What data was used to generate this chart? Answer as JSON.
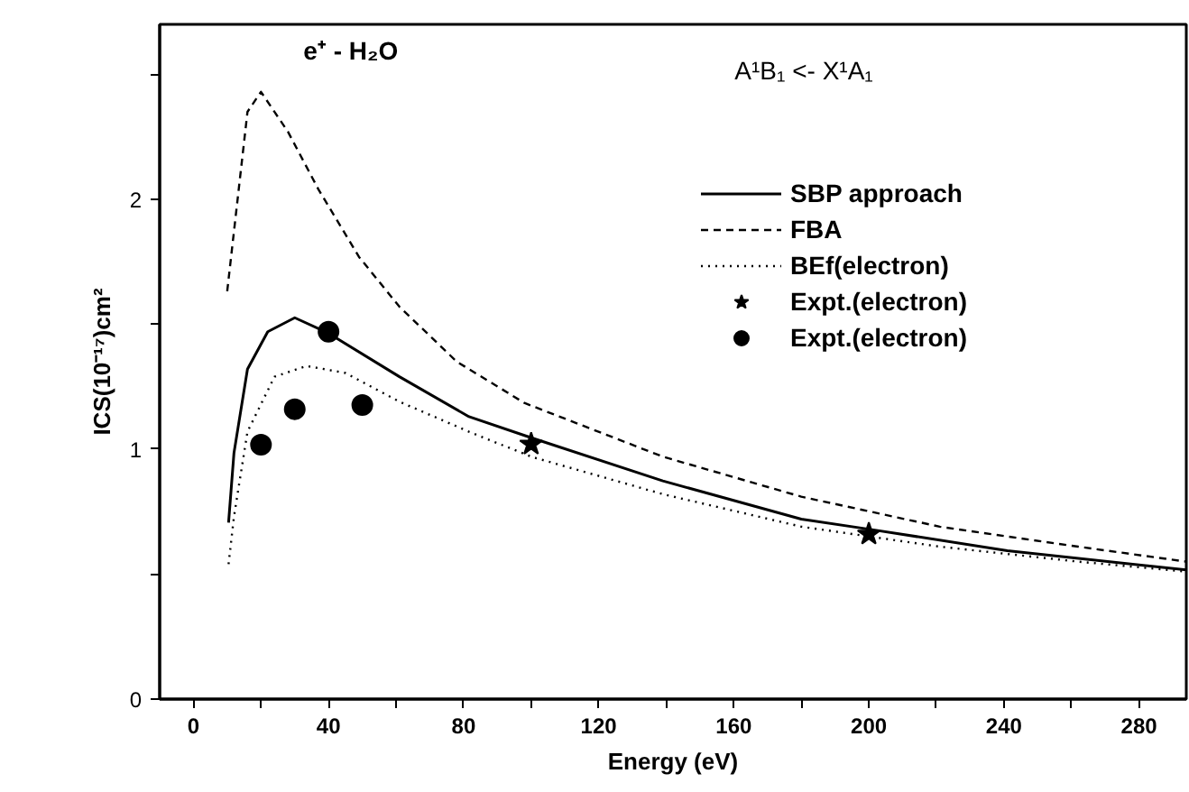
{
  "chart_data": {
    "type": "line",
    "xlabel": "Energy (eV)",
    "ylabel": "ICS(10⁻¹⁷)cm²",
    "annotations": [
      "e⁺ - H₂O",
      "A¹B₁ <- X¹A₁"
    ],
    "xlim": [
      -10,
      294
    ],
    "ylim": [
      0,
      2.7
    ],
    "xticks": [
      0,
      {
        "value": 20,
        "label": null
      },
      40,
      {
        "value": 60,
        "label": null
      },
      80,
      {
        "value": 100,
        "label": null
      },
      120,
      {
        "value": 140,
        "label": null
      },
      160,
      {
        "value": 180,
        "label": null
      },
      200,
      {
        "value": 220,
        "label": null
      },
      240,
      {
        "value": 260,
        "label": null
      },
      280
    ],
    "yticks": [
      0,
      {
        "value": 0.5,
        "label": null
      },
      1,
      {
        "value": 1.5,
        "label": null
      },
      2,
      {
        "value": 2.5,
        "label": null
      }
    ],
    "grid": false,
    "legend": "top right",
    "series": [
      {
        "name": "SBP approach",
        "color": "#000000",
        "line_style": "solid",
        "x": [
          10.4,
          12,
          16,
          22,
          30,
          40,
          61,
          81.6,
          100,
          139,
          180,
          200,
          241,
          294
        ],
        "values": [
          0.706,
          0.985,
          1.32,
          1.47,
          1.526,
          1.464,
          1.29,
          1.13,
          1.046,
          0.873,
          0.72,
          0.68,
          0.594,
          0.517
        ]
      },
      {
        "name": "FBA",
        "color": "#000000",
        "line_style": "dashed",
        "x": [
          10,
          16,
          20,
          28,
          37,
          49,
          61,
          78,
          98,
          139,
          180,
          221,
          262,
          294
        ],
        "values": [
          1.632,
          2.35,
          2.43,
          2.27,
          2.04,
          1.77,
          1.57,
          1.35,
          1.185,
          0.97,
          0.81,
          0.69,
          0.61,
          0.55
        ]
      },
      {
        "name": "BEf(electron)",
        "color": "#000000",
        "line_style": "dotted",
        "x": [
          10.4,
          12,
          16,
          24,
          33.5,
          45,
          61,
          81.6,
          100,
          139,
          180,
          221,
          262,
          294
        ],
        "values": [
          0.54,
          0.73,
          1.07,
          1.29,
          1.333,
          1.305,
          1.19,
          1.07,
          0.97,
          0.82,
          0.69,
          0.61,
          0.55,
          0.51
        ]
      },
      {
        "name": "Expt.(electron)",
        "type": "scatter",
        "color": "#000000",
        "marker": "star",
        "x": [
          100,
          200
        ],
        "values": [
          1.02,
          0.66
        ]
      },
      {
        "name": "Expt.(electron)",
        "type": "scatter",
        "color": "#000000",
        "marker": "circle",
        "x": [
          20,
          30,
          40,
          50
        ],
        "values": [
          1.018,
          1.16,
          1.47,
          1.177
        ]
      }
    ]
  }
}
